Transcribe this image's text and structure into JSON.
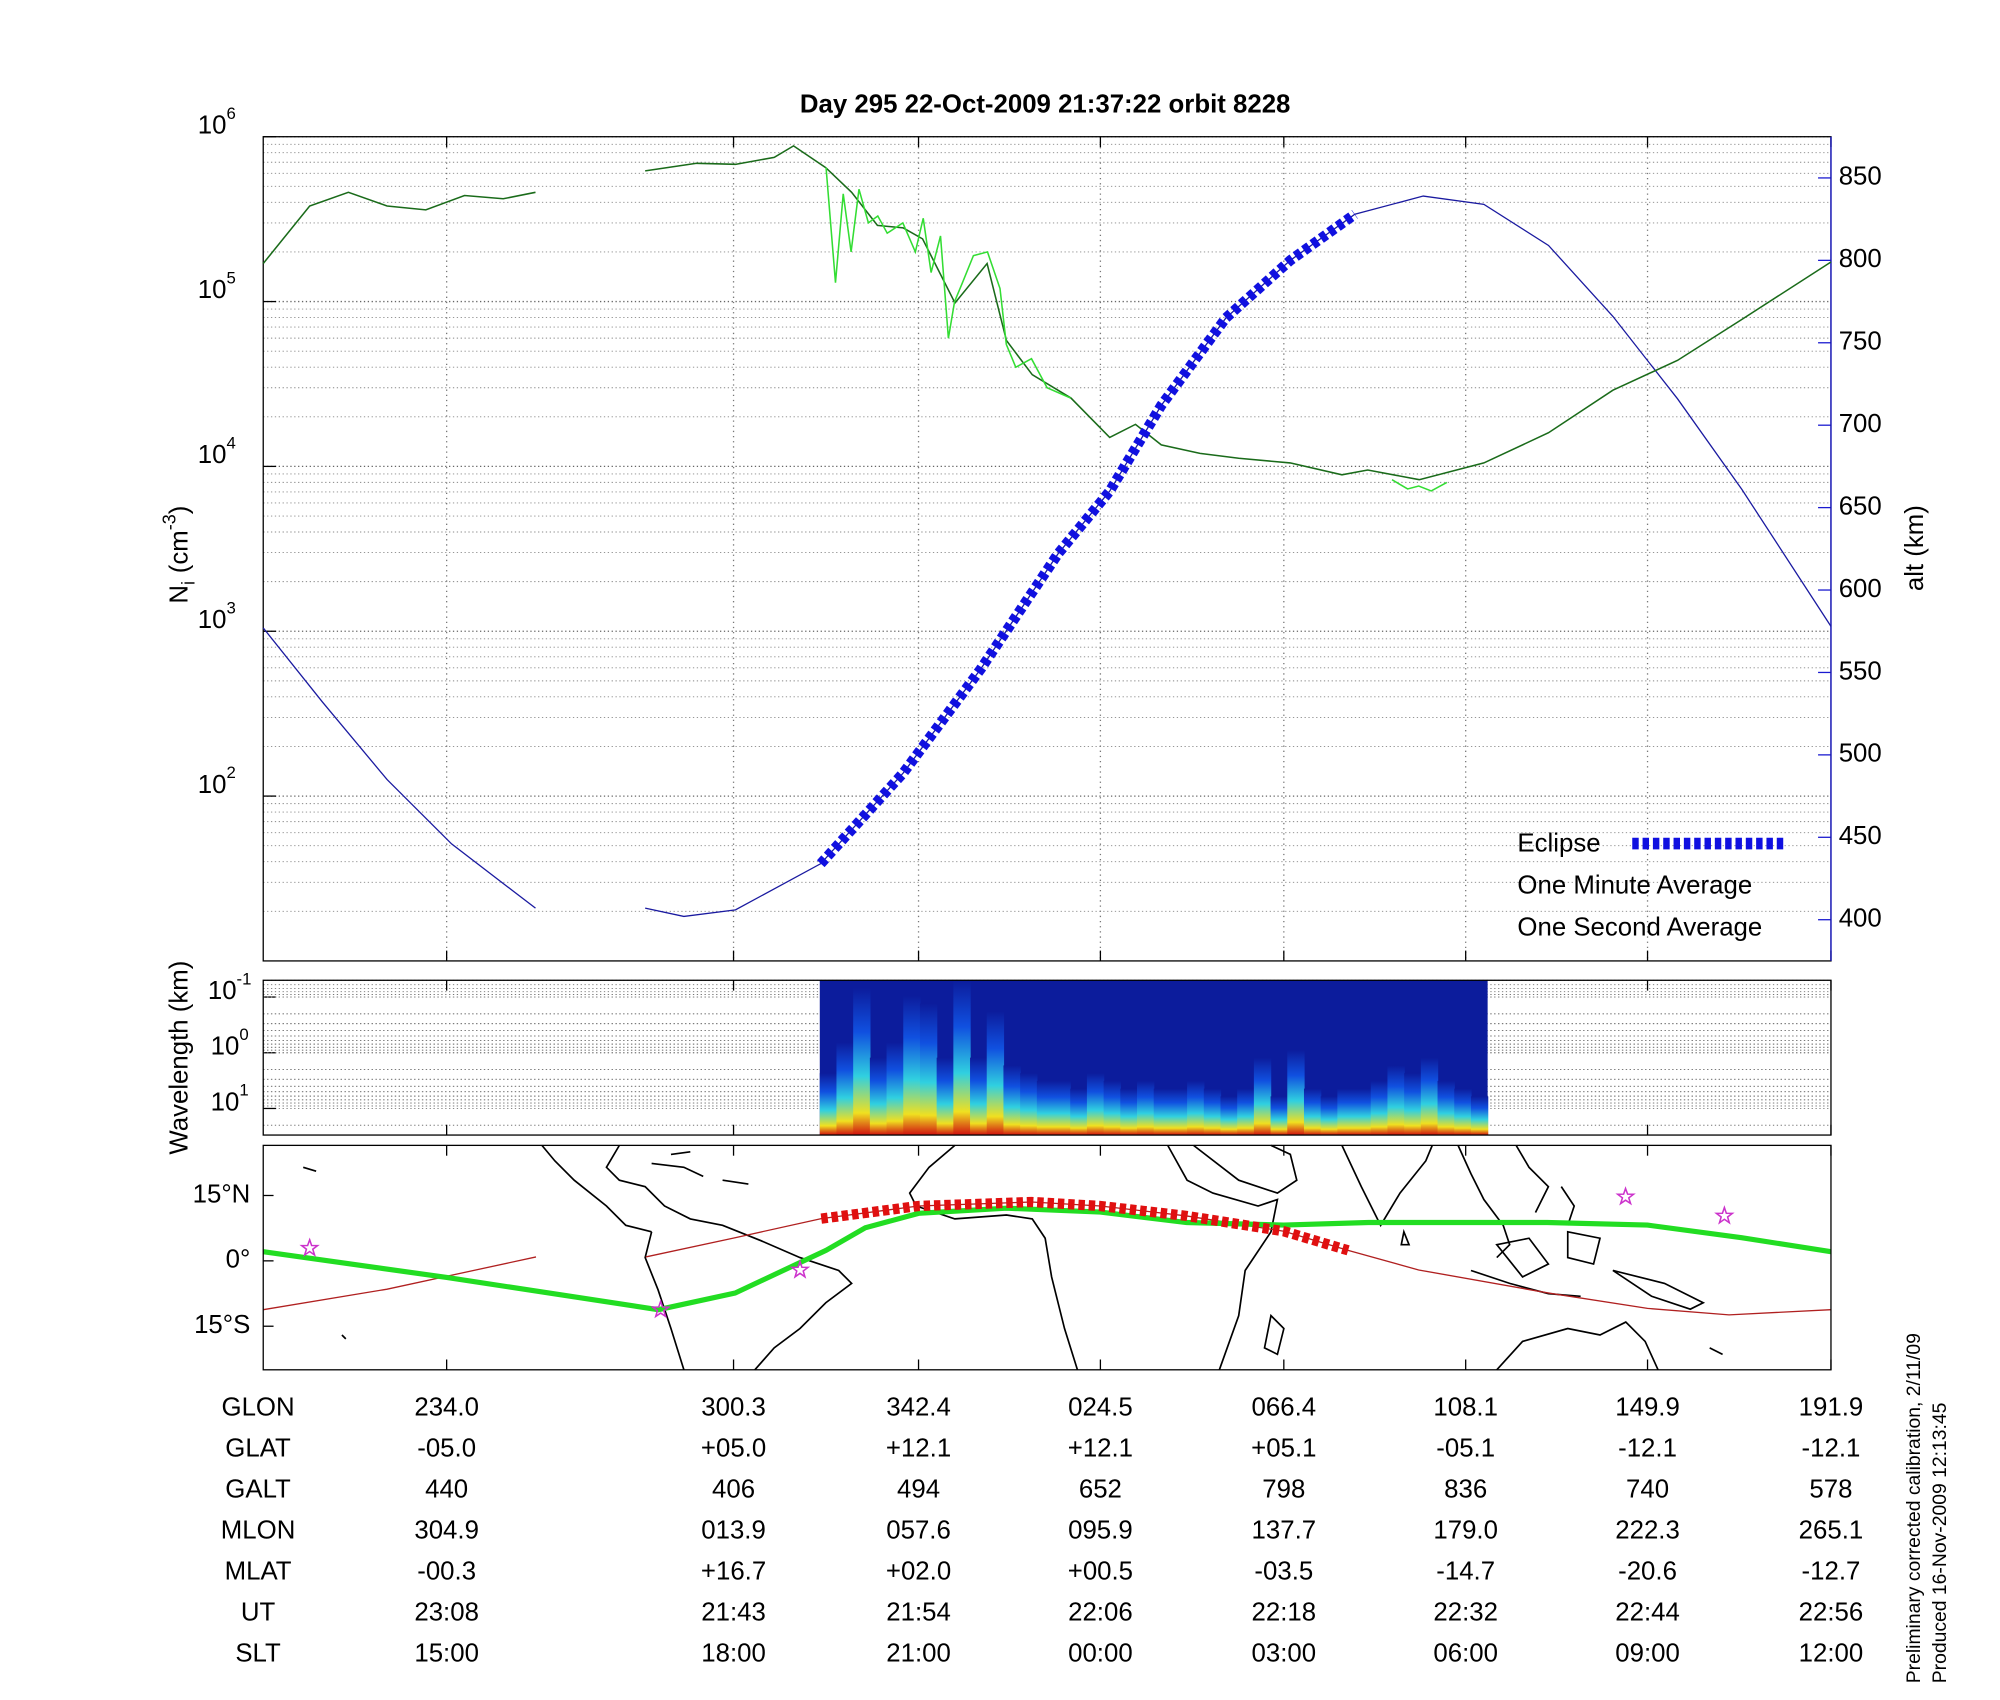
{
  "chart_data": [
    {
      "type": "line",
      "title": "Day 295  22-Oct-2009 21:37:22   orbit 8228",
      "ylabel": {
        "base": "N",
        "sub": "i",
        "unit": "(cm",
        "sup": "-3",
        "close": ")"
      },
      "y2label": "alt (km)",
      "xlim": [
        0,
        100
      ],
      "xticks": [
        11.7,
        30.0,
        41.8,
        53.4,
        65.1,
        76.7,
        88.3,
        100
      ],
      "ylim": [
        10,
        1000000
      ],
      "ylog": true,
      "yticks": [
        {
          "value": 100,
          "label": "10",
          "exponent": "2"
        },
        {
          "value": 1000,
          "label": "10",
          "exponent": "3"
        },
        {
          "value": 10000,
          "label": "10",
          "exponent": "4"
        },
        {
          "value": 100000,
          "label": "10",
          "exponent": "5"
        },
        {
          "value": 1000000,
          "label": "10",
          "exponent": "6"
        }
      ],
      "y2lim": [
        375,
        875
      ],
      "y2ticks": [
        400,
        450,
        500,
        550,
        600,
        650,
        700,
        750,
        800,
        850
      ],
      "grid": true,
      "legend": "lower right",
      "y2color": "#1a1ad0",
      "series": [
        {
          "name": "Eclipse",
          "color": "#1010e0",
          "axis": "y2",
          "linestyle": "dashed",
          "x": [
            35.56,
            40.82,
            45.76,
            50.7,
            53.99,
            57.28,
            61.4,
            65.51,
            69.63
          ],
          "values": [
            434,
            489,
            552,
            622,
            660,
            712,
            765,
            800,
            828
          ]
        },
        {
          "name": "One Minute Average",
          "color": "#1a6b1a",
          "label_color": "#000000",
          "linestyle": "solid",
          "x": [
            0,
            2.96,
            5.43,
            7.9,
            10.37,
            12.84,
            15.31,
            17.37,
            20.8,
            24.36,
            27.65,
            30.12,
            32.59,
            33.83,
            35.88,
            37.53,
            39.18,
            40.82,
            42.06,
            44.12,
            46.17,
            47.41,
            49.05,
            51.52,
            53.99,
            55.64,
            57.28,
            59.75,
            62.22,
            65.51,
            68.81,
            70.45,
            73.74,
            77.86,
            81.98,
            86.09,
            90.21,
            94.32,
            100
          ],
          "values": [
            170000,
            380000,
            460000,
            380000,
            360000,
            440000,
            420000,
            460000,
            null,
            620000,
            690000,
            680000,
            750000,
            880000,
            650000,
            460000,
            290000,
            280000,
            240000,
            98000,
            170000,
            58000,
            36000,
            26000,
            15000,
            18000,
            13500,
            12000,
            11200,
            10500,
            8900,
            9500,
            8300,
            10500,
            16000,
            29000,
            44000,
            78000,
            174000
          ]
        },
        {
          "name": "One Second Average",
          "color": "#33dd33",
          "linestyle": "solid",
          "x": [
            35.9,
            36.5,
            37.0,
            37.5,
            38.0,
            38.6,
            39.2,
            39.8,
            40.8,
            41.6,
            42.1,
            42.6,
            43.2,
            43.7,
            44.1,
            44.6,
            45.3,
            46.2,
            47.0,
            47.4,
            48.0,
            49.0,
            50.0,
            51.5,
            60.0,
            72.0,
            73.0,
            73.7,
            74.5,
            75.5
          ],
          "values": [
            650000,
            130000,
            450000,
            200000,
            480000,
            300000,
            330000,
            260000,
            300000,
            200000,
            320000,
            150000,
            250000,
            60000,
            100000,
            130000,
            190000,
            200000,
            120000,
            55000,
            40000,
            45000,
            30000,
            26000,
            null,
            8300,
            7300,
            7600,
            7100,
            8000
          ]
        },
        {
          "color": "#1a1aa0",
          "axis": "y2",
          "linestyle": "thin",
          "x": [
            0,
            3.79,
            7.9,
            12.02,
            17.37,
            20.8,
            24.36,
            26.83,
            30.12,
            35.56,
            40.82,
            45.76,
            50.7,
            53.99,
            57.28,
            61.4,
            65.51,
            69.63,
            73.99,
            77.86,
            81.98,
            86.09,
            90.21,
            94.32,
            100
          ],
          "values": [
            577,
            532,
            485,
            446,
            407,
            null,
            407,
            402,
            406,
            434,
            489,
            552,
            622,
            660,
            712,
            765,
            800,
            828,
            839,
            834,
            809,
            766,
            716,
            661,
            578
          ]
        }
      ]
    },
    {
      "type": "heatmap",
      "ylabel": "Wavelength (km)",
      "ylim": [
        30,
        0.05
      ],
      "ylog": true,
      "yticks": [
        {
          "value": 0.1,
          "label": "10",
          "exponent": "-1"
        },
        {
          "value": 1,
          "label": "10",
          "exponent": "0"
        },
        {
          "value": 10,
          "label": "10",
          "exponent": "1"
        }
      ],
      "x_range": [
        35.5,
        78.1
      ],
      "background": "#0c1c9c",
      "intensity": [
        0.4,
        0.6,
        0.95,
        0.5,
        0.6,
        0.9,
        0.85,
        0.5,
        1.0,
        0.5,
        0.8,
        0.45,
        0.4,
        0.35,
        0.35,
        0.3,
        0.4,
        0.35,
        0.3,
        0.35,
        0.3,
        0.3,
        0.35,
        0.3,
        0.25,
        0.3,
        0.5,
        0.25,
        0.55,
        0.3,
        0.25,
        0.3,
        0.3,
        0.35,
        0.45,
        0.4,
        0.5,
        0.35,
        0.3,
        0.25
      ]
    },
    {
      "type": "map",
      "ylim": [
        -25,
        26.5
      ],
      "yticks": [
        {
          "value": 15,
          "label": "15°N"
        },
        {
          "value": 0,
          "label": "0°"
        },
        {
          "value": -15,
          "label": "15°S"
        }
      ],
      "series": [
        {
          "color": "#b02020",
          "linestyle": "thin",
          "x": [
            0,
            7.9,
            17.4,
            20.8,
            24.4,
            30.1,
            35.6,
            41.8,
            49.0,
            53.4,
            58.9,
            65.1,
            69.2,
            73.7,
            82.0,
            88.3,
            93.5,
            100
          ],
          "values": [
            -11.2,
            -6.5,
            0.9,
            null,
            0.9,
            5.3,
            9.7,
            12.6,
            13.5,
            12.6,
            10.3,
            6.8,
            2.4,
            -2.1,
            -7.4,
            -10.9,
            -12.4,
            -11.2
          ]
        },
        {
          "color": "#22dd22",
          "linestyle": "thick",
          "x": [
            0,
            11.7,
            25.2,
            30.1,
            35.9,
            38.4,
            41.8,
            47.4,
            53.4,
            58.9,
            65.1,
            70.5,
            76.7,
            81.9,
            88.3,
            94.3,
            100
          ],
          "values": [
            2.1,
            -3.8,
            -11.2,
            -7.4,
            2.4,
            7.6,
            10.9,
            12.1,
            11.2,
            8.8,
            8.2,
            8.8,
            8.8,
            8.8,
            8.2,
            5.3,
            2.1
          ]
        },
        {
          "color": "#e01010",
          "linestyle": "dashed",
          "x": [
            35.6,
            41.8,
            49.0,
            53.4,
            58.9,
            65.1,
            69.2
          ],
          "values": [
            9.7,
            12.6,
            13.5,
            12.6,
            10.3,
            6.8,
            2.4
          ]
        }
      ],
      "stars": {
        "color": "#cc33cc",
        "x": [
          2.96,
          25.35,
          34.24,
          86.9,
          93.2
        ],
        "y": [
          2.9,
          -11.2,
          -2.1,
          14.7,
          10.3
        ]
      }
    }
  ],
  "table": {
    "rows": [
      {
        "label": "GLON",
        "values": [
          "234.0",
          "300.3",
          "342.4",
          "024.5",
          "066.4",
          "108.1",
          "149.9",
          "191.9"
        ]
      },
      {
        "label": "GLAT",
        "values": [
          "-05.0",
          "+05.0",
          "+12.1",
          "+12.1",
          "+05.1",
          "-05.1",
          "-12.1",
          "-12.1"
        ]
      },
      {
        "label": "GALT",
        "values": [
          "440",
          "406",
          "494",
          "652",
          "798",
          "836",
          "740",
          "578"
        ]
      },
      {
        "label": "MLON",
        "values": [
          "304.9",
          "013.9",
          "057.6",
          "095.9",
          "137.7",
          "179.0",
          "222.3",
          "265.1"
        ]
      },
      {
        "label": "MLAT",
        "values": [
          "-00.3",
          "+16.7",
          "+02.0",
          "+00.5",
          "-03.5",
          "-14.7",
          "-20.6",
          "-12.7"
        ]
      },
      {
        "label": "UT",
        "values": [
          "23:08",
          "21:43",
          "21:54",
          "22:06",
          "22:18",
          "22:32",
          "22:44",
          "22:56"
        ]
      },
      {
        "label": "SLT",
        "values": [
          "15:00",
          "18:00",
          "21:00",
          "00:00",
          "03:00",
          "06:00",
          "09:00",
          "12:00"
        ]
      }
    ]
  },
  "notes": [
    "Preliminary corrected calibration, 2/11/09",
    "Produced 16-Nov-2009 12:13:45"
  ]
}
